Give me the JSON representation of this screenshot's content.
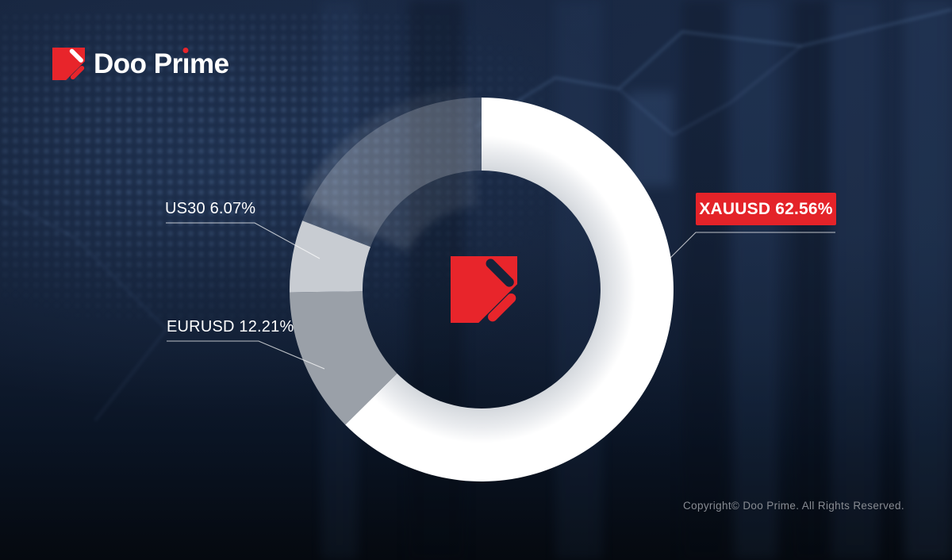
{
  "brand": {
    "name": "Doo Prime",
    "wordmark_pre": "Doo Pr",
    "wordmark_i": "ı",
    "wordmark_post": "me"
  },
  "chart_data": {
    "type": "pie",
    "subtype": "donut",
    "title": "",
    "direction": "clockwise",
    "start_angle_deg": 0,
    "inner_radius_ratio": 0.62,
    "legend_position": "callout-labels",
    "segments": [
      {
        "label": "XAUUSD",
        "value": 62.56,
        "display": "XAUUSD 62.56%",
        "color": "#ffffff",
        "highlighted": true
      },
      {
        "label": "EURUSD",
        "value": 12.21,
        "display": "EURUSD 12.21%",
        "color": "#9aa0a8",
        "highlighted": false
      },
      {
        "label": "US30",
        "value": 6.07,
        "display": "US30 6.07%",
        "color": "#c8ccd2",
        "highlighted": false
      },
      {
        "label": "",
        "value": 19.16,
        "display": "",
        "color": "rgba(255,255,255,0.20)",
        "highlighted": false,
        "note": "unlabeled remainder"
      }
    ]
  },
  "footer": {
    "copyright": "Copyright© Doo Prime. All Rights Reserved."
  },
  "colors": {
    "brand_red": "#e8252b",
    "highlight_box_red": "#e42329",
    "background_navy": "#15233b",
    "label_text": "#ffffff",
    "copyright_text": "#878b92"
  }
}
